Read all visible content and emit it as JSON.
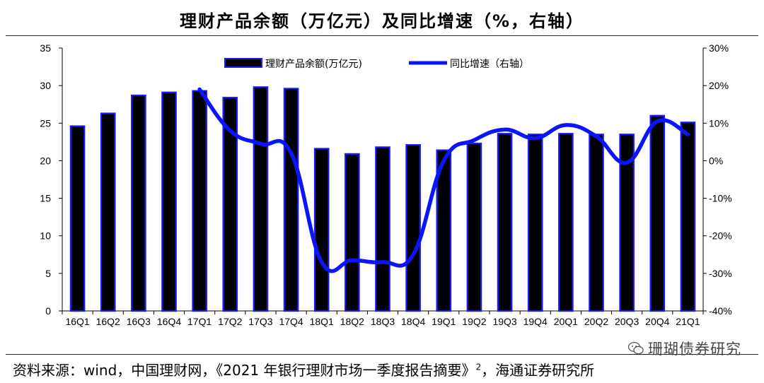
{
  "title": "理财产品余额（万亿元）及同比增速（%，右轴）",
  "source": {
    "text": "资料来源：wind，中国理财网，《2021 年银行理财市场一季度报告摘要》",
    "sup": "2",
    "suffix": "，海通证券研究所"
  },
  "watermark": "珊瑚债券研究",
  "chart_data": {
    "type": "bar+line",
    "categories": [
      "16Q1",
      "16Q2",
      "16Q3",
      "16Q4",
      "17Q1",
      "17Q2",
      "17Q3",
      "17Q4",
      "18Q1",
      "18Q2",
      "18Q3",
      "18Q4",
      "19Q1",
      "19Q2",
      "19Q3",
      "19Q4",
      "20Q1",
      "20Q2",
      "20Q3",
      "20Q4",
      "21Q1"
    ],
    "series": [
      {
        "name": "理财产品余额(万亿元)",
        "axis": "left",
        "kind": "bar",
        "values": [
          24.6,
          26.3,
          28.7,
          29.1,
          29.3,
          28.4,
          29.8,
          29.6,
          21.6,
          20.9,
          21.8,
          22.1,
          21.4,
          22.3,
          23.6,
          23.5,
          23.6,
          23.5,
          23.5,
          26.0,
          25.1
        ]
      },
      {
        "name": "同比增速（右轴）",
        "axis": "right",
        "kind": "line",
        "values": [
          null,
          null,
          null,
          null,
          19,
          8,
          4.5,
          2,
          -27,
          -26.5,
          -27,
          -25,
          0,
          5.5,
          8.3,
          6,
          9.5,
          6.5,
          -0.5,
          10.5,
          7
        ]
      }
    ],
    "y_left": {
      "min": 0,
      "max": 35,
      "ticks": [
        0,
        5,
        10,
        15,
        20,
        25,
        30,
        35
      ]
    },
    "y_right": {
      "min": -40,
      "max": 30,
      "ticks": [
        "-40%",
        "-30%",
        "-20%",
        "-10%",
        "0%",
        "10%",
        "20%",
        "30%"
      ]
    },
    "legend": [
      {
        "label": "理财产品余额(万亿元)",
        "kind": "bar"
      },
      {
        "label": "同比增速（右轴）",
        "kind": "line"
      }
    ],
    "colors": {
      "bar_fill": "#000000",
      "bar_edge": "#1a1aff",
      "line": "#0a14ff"
    }
  }
}
